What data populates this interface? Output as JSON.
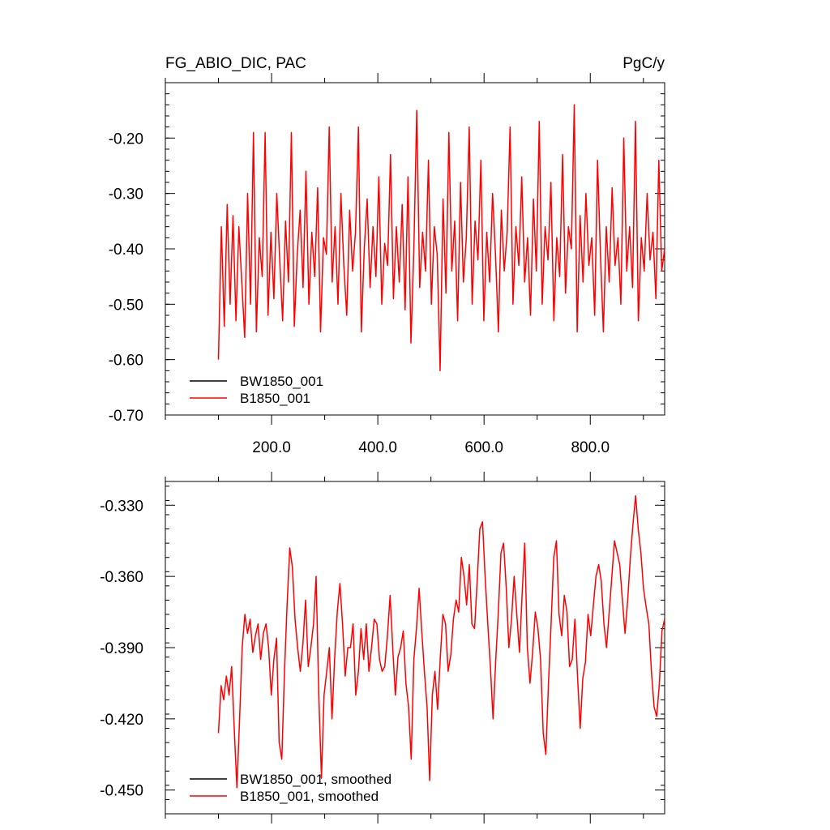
{
  "chart_data": [
    {
      "type": "line",
      "title_left": "FG_ABIO_DIC, PAC",
      "title_right": "PgC/y",
      "xlim": [
        0,
        940
      ],
      "ylim": [
        -0.7,
        -0.1
      ],
      "x_ticks": [
        200,
        400,
        600,
        800
      ],
      "x_tick_labels": [
        "200.0",
        "400.0",
        "600.0",
        "800.0"
      ],
      "y_ticks": [
        -0.7,
        -0.6,
        -0.5,
        -0.4,
        -0.3,
        -0.2
      ],
      "y_tick_labels": [
        "-0.70",
        "-0.60",
        "-0.50",
        "-0.40",
        "-0.30",
        "-0.20"
      ],
      "grid": false,
      "legend_position": "bottom-left",
      "series": [
        {
          "name": "BW1850_001",
          "color": "#000000",
          "x_start": 100,
          "x_end": 940,
          "values": []
        },
        {
          "name": "B1850_001",
          "color": "#ff0000",
          "x_start": 100,
          "x_end": 940,
          "values": [
            -0.6,
            -0.36,
            -0.54,
            -0.32,
            -0.5,
            -0.34,
            -0.53,
            -0.36,
            -0.46,
            -0.56,
            -0.3,
            -0.5,
            -0.19,
            -0.55,
            -0.38,
            -0.45,
            -0.19,
            -0.52,
            -0.37,
            -0.49,
            -0.3,
            -0.42,
            -0.53,
            -0.35,
            -0.46,
            -0.19,
            -0.54,
            -0.41,
            -0.33,
            -0.47,
            -0.26,
            -0.5,
            -0.37,
            -0.45,
            -0.29,
            -0.55,
            -0.38,
            -0.41,
            -0.18,
            -0.46,
            -0.36,
            -0.5,
            -0.3,
            -0.43,
            -0.52,
            -0.33,
            -0.44,
            -0.37,
            -0.18,
            -0.55,
            -0.4,
            -0.31,
            -0.47,
            -0.36,
            -0.45,
            -0.27,
            -0.5,
            -0.39,
            -0.43,
            -0.23,
            -0.49,
            -0.36,
            -0.46,
            -0.32,
            -0.51,
            -0.27,
            -0.57,
            -0.4,
            -0.15,
            -0.47,
            -0.37,
            -0.44,
            -0.24,
            -0.5,
            -0.36,
            -0.41,
            -0.62,
            -0.31,
            -0.48,
            -0.19,
            -0.44,
            -0.35,
            -0.53,
            -0.28,
            -0.46,
            -0.38,
            -0.18,
            -0.5,
            -0.35,
            -0.42,
            -0.24,
            -0.53,
            -0.37,
            -0.46,
            -0.3,
            -0.41,
            -0.55,
            -0.33,
            -0.44,
            -0.37,
            -0.18,
            -0.5,
            -0.36,
            -0.43,
            -0.27,
            -0.46,
            -0.38,
            -0.52,
            -0.31,
            -0.44,
            -0.17,
            -0.5,
            -0.36,
            -0.42,
            -0.28,
            -0.53,
            -0.38,
            -0.45,
            -0.23,
            -0.48,
            -0.36,
            -0.4,
            -0.14,
            -0.55,
            -0.34,
            -0.46,
            -0.3,
            -0.43,
            -0.38,
            -0.52,
            -0.24,
            -0.41,
            -0.55,
            -0.36,
            -0.46,
            -0.29,
            -0.43,
            -0.38,
            -0.5,
            -0.2,
            -0.44,
            -0.36,
            -0.47,
            -0.17,
            -0.53,
            -0.38,
            -0.44,
            -0.3,
            -0.42,
            -0.37,
            -0.49,
            -0.24,
            -0.44,
            -0.4
          ]
        }
      ]
    },
    {
      "type": "line",
      "xlim": [
        0,
        940
      ],
      "ylim": [
        -0.46,
        -0.32
      ],
      "y_ticks": [
        -0.45,
        -0.42,
        -0.39,
        -0.36,
        -0.33
      ],
      "y_tick_labels": [
        "-0.450",
        "-0.420",
        "-0.390",
        "-0.360",
        "-0.330"
      ],
      "grid": false,
      "legend_position": "bottom-left",
      "series": [
        {
          "name": "BW1850_001, smoothed",
          "color": "#000000",
          "x_start": 100,
          "x_end": 940,
          "values": []
        },
        {
          "name": "B1850_001, smoothed",
          "color": "#ff0000",
          "x_start": 100,
          "x_end": 940,
          "values": [
            -0.426,
            -0.406,
            -0.412,
            -0.402,
            -0.41,
            -0.398,
            -0.425,
            -0.449,
            -0.42,
            -0.39,
            -0.376,
            -0.384,
            -0.378,
            -0.392,
            -0.385,
            -0.38,
            -0.395,
            -0.384,
            -0.38,
            -0.39,
            -0.41,
            -0.395,
            -0.386,
            -0.43,
            -0.437,
            -0.4,
            -0.372,
            -0.348,
            -0.356,
            -0.378,
            -0.39,
            -0.4,
            -0.388,
            -0.37,
            -0.398,
            -0.39,
            -0.38,
            -0.36,
            -0.41,
            -0.445,
            -0.41,
            -0.4,
            -0.39,
            -0.42,
            -0.395,
            -0.375,
            -0.363,
            -0.38,
            -0.402,
            -0.39,
            -0.39,
            -0.38,
            -0.41,
            -0.4,
            -0.382,
            -0.395,
            -0.38,
            -0.4,
            -0.39,
            -0.378,
            -0.38,
            -0.395,
            -0.4,
            -0.398,
            -0.385,
            -0.368,
            -0.39,
            -0.41,
            -0.394,
            -0.39,
            -0.383,
            -0.405,
            -0.415,
            -0.437,
            -0.395,
            -0.382,
            -0.365,
            -0.383,
            -0.4,
            -0.415,
            -0.446,
            -0.41,
            -0.4,
            -0.416,
            -0.395,
            -0.376,
            -0.38,
            -0.4,
            -0.393,
            -0.378,
            -0.37,
            -0.375,
            -0.352,
            -0.36,
            -0.372,
            -0.355,
            -0.38,
            -0.382,
            -0.362,
            -0.34,
            -0.337,
            -0.36,
            -0.38,
            -0.398,
            -0.42,
            -0.396,
            -0.375,
            -0.35,
            -0.346,
            -0.365,
            -0.39,
            -0.378,
            -0.36,
            -0.376,
            -0.392,
            -0.368,
            -0.346,
            -0.39,
            -0.405,
            -0.392,
            -0.375,
            -0.382,
            -0.395,
            -0.426,
            -0.435,
            -0.405,
            -0.38,
            -0.352,
            -0.345,
            -0.376,
            -0.385,
            -0.368,
            -0.375,
            -0.398,
            -0.395,
            -0.378,
            -0.402,
            -0.424,
            -0.403,
            -0.396,
            -0.376,
            -0.385,
            -0.372,
            -0.36,
            -0.355,
            -0.362,
            -0.38,
            -0.39,
            -0.375,
            -0.36,
            -0.345,
            -0.35,
            -0.355,
            -0.37,
            -0.384,
            -0.37,
            -0.352,
            -0.338,
            -0.326,
            -0.34,
            -0.35,
            -0.365,
            -0.373,
            -0.38,
            -0.4,
            -0.415,
            -0.419,
            -0.405,
            -0.383,
            -0.378
          ]
        }
      ]
    }
  ]
}
